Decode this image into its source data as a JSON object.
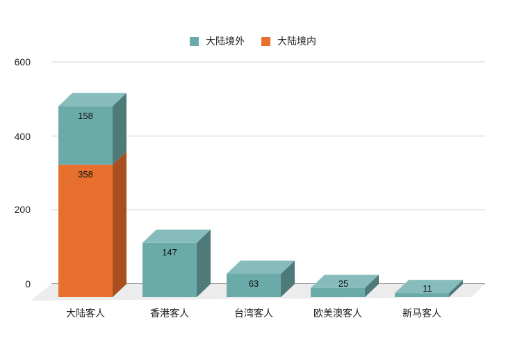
{
  "chart_data": {
    "type": "bar",
    "stacked": true,
    "three_d": true,
    "title": "",
    "xlabel": "",
    "ylabel": "",
    "ylim": [
      0,
      600
    ],
    "yticks": [
      "0",
      "200",
      "400",
      "600"
    ],
    "grid": true,
    "legend_position": "top",
    "categories": [
      "大陆客人",
      "香港客人",
      "台湾客人",
      "欧美澳客人",
      "新马客人"
    ],
    "series": [
      {
        "name": "大陆境内",
        "color": "#E8702E",
        "values": [
          358,
          null,
          null,
          null,
          null
        ]
      },
      {
        "name": "大陆境外",
        "color": "#6AABAA",
        "values": [
          158,
          147,
          63,
          25,
          11
        ]
      }
    ]
  },
  "legend": [
    {
      "label": "大陆境外",
      "color": "#6AABAA"
    },
    {
      "label": "大陆境内",
      "color": "#E8702E"
    }
  ],
  "colors": {
    "teal_front": "#6AABAA",
    "teal_top": "#86BDBC",
    "teal_side": "#4E7A7A",
    "orange_front": "#E8702E",
    "orange_side": "#A84E1F",
    "grid": "#D0D0D0",
    "floor": "#ECECEC"
  }
}
